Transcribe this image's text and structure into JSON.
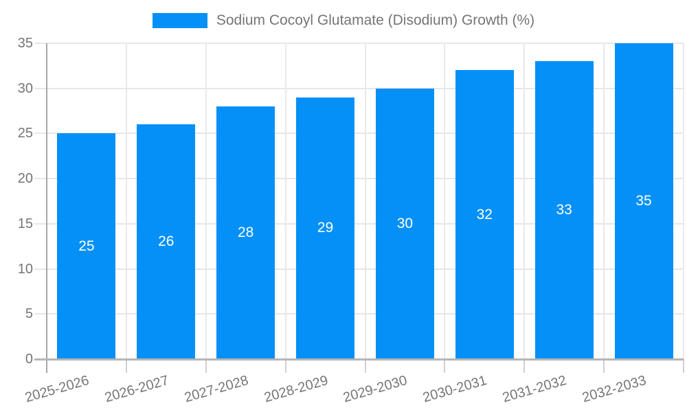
{
  "legend": {
    "label": "Sodium Cocoyl Glutamate (Disodium) Growth (%)",
    "swatch_color": "#0590f8"
  },
  "chart_data": {
    "type": "bar",
    "title": "Sodium Cocoyl Glutamate (Disodium) Growth (%)",
    "categories": [
      "2025-2026",
      "2026-2027",
      "2027-2028",
      "2028-2029",
      "2029-2030",
      "2030-2031",
      "2031-2032",
      "2032-2033"
    ],
    "values": [
      25,
      26,
      28,
      29,
      30,
      32,
      33,
      35
    ],
    "xlabel": "",
    "ylabel": "",
    "ylim": [
      0,
      35
    ],
    "yticks": [
      0,
      5,
      10,
      15,
      20,
      25,
      30,
      35
    ],
    "grid": true,
    "legend_position": "top",
    "bar_color": "#0590f8",
    "value_label_color": "#ffffff",
    "axis_text_color": "#757575",
    "gridline_color": "#e6e6e6",
    "axis_line_color": "#b5b5b5"
  }
}
